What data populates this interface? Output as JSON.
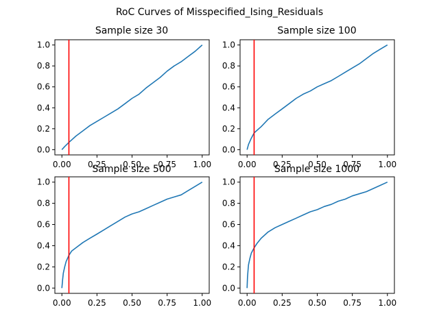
{
  "figure": {
    "title": "RoC Curves of Misspecified_Ising_Residuals"
  },
  "colors": {
    "curve": "#1f77b4",
    "threshold": "#ff0000"
  },
  "chart_data": [
    {
      "type": "line",
      "title": "Sample size 30",
      "xlabel": "",
      "ylabel": "",
      "xlim": [
        -0.05,
        1.05
      ],
      "ylim": [
        -0.05,
        1.05
      ],
      "xticks": [
        "0.00",
        "0.25",
        "0.50",
        "0.75",
        "1.00"
      ],
      "yticks": [
        "0.0",
        "0.2",
        "0.4",
        "0.6",
        "0.8",
        "1.0"
      ],
      "vline": 0.05,
      "grid": false,
      "x": [
        0,
        0.02,
        0.05,
        0.1,
        0.15,
        0.2,
        0.25,
        0.3,
        0.35,
        0.4,
        0.45,
        0.5,
        0.55,
        0.6,
        0.65,
        0.7,
        0.75,
        0.8,
        0.85,
        0.9,
        0.95,
        1.0
      ],
      "y": [
        0,
        0.03,
        0.07,
        0.13,
        0.18,
        0.23,
        0.27,
        0.31,
        0.35,
        0.39,
        0.44,
        0.49,
        0.53,
        0.59,
        0.64,
        0.69,
        0.75,
        0.8,
        0.84,
        0.89,
        0.94,
        1.0
      ]
    },
    {
      "type": "line",
      "title": "Sample size 100",
      "xlabel": "",
      "ylabel": "",
      "xlim": [
        -0.05,
        1.05
      ],
      "ylim": [
        -0.05,
        1.05
      ],
      "xticks": [
        "0.00",
        "0.25",
        "0.50",
        "0.75",
        "1.00"
      ],
      "yticks": [
        "0.0",
        "0.2",
        "0.4",
        "0.6",
        "0.8",
        "1.0"
      ],
      "vline": 0.05,
      "grid": false,
      "x": [
        0,
        0.01,
        0.03,
        0.05,
        0.1,
        0.15,
        0.2,
        0.25,
        0.3,
        0.35,
        0.4,
        0.45,
        0.5,
        0.55,
        0.6,
        0.65,
        0.7,
        0.75,
        0.8,
        0.85,
        0.9,
        0.95,
        1.0
      ],
      "y": [
        0,
        0.05,
        0.11,
        0.16,
        0.22,
        0.29,
        0.34,
        0.39,
        0.44,
        0.49,
        0.53,
        0.56,
        0.6,
        0.63,
        0.66,
        0.7,
        0.74,
        0.78,
        0.82,
        0.87,
        0.92,
        0.96,
        1.0
      ]
    },
    {
      "type": "line",
      "title": "Sample size 500",
      "xlabel": "",
      "ylabel": "",
      "xlim": [
        -0.05,
        1.05
      ],
      "ylim": [
        -0.05,
        1.05
      ],
      "xticks": [
        "0.00",
        "0.25",
        "0.50",
        "0.75",
        "1.00"
      ],
      "yticks": [
        "0.0",
        "0.2",
        "0.4",
        "0.6",
        "0.8",
        "1.0"
      ],
      "vline": 0.05,
      "grid": false,
      "x": [
        0,
        0.005,
        0.01,
        0.02,
        0.03,
        0.05,
        0.07,
        0.1,
        0.15,
        0.2,
        0.25,
        0.3,
        0.35,
        0.4,
        0.45,
        0.5,
        0.55,
        0.6,
        0.65,
        0.7,
        0.75,
        0.8,
        0.85,
        0.9,
        0.95,
        1.0
      ],
      "y": [
        0,
        0.08,
        0.14,
        0.2,
        0.25,
        0.31,
        0.35,
        0.38,
        0.43,
        0.47,
        0.51,
        0.55,
        0.59,
        0.63,
        0.67,
        0.7,
        0.72,
        0.75,
        0.78,
        0.81,
        0.84,
        0.86,
        0.88,
        0.92,
        0.96,
        1.0
      ]
    },
    {
      "type": "line",
      "title": "Sample size 1000",
      "xlabel": "",
      "ylabel": "",
      "xlim": [
        -0.05,
        1.05
      ],
      "ylim": [
        -0.05,
        1.05
      ],
      "xticks": [
        "0.00",
        "0.25",
        "0.50",
        "0.75",
        "1.00"
      ],
      "yticks": [
        "0.0",
        "0.2",
        "0.4",
        "0.6",
        "0.8",
        "1.0"
      ],
      "vline": 0.05,
      "grid": false,
      "x": [
        0,
        0.003,
        0.006,
        0.01,
        0.02,
        0.03,
        0.05,
        0.07,
        0.1,
        0.15,
        0.2,
        0.25,
        0.3,
        0.35,
        0.4,
        0.45,
        0.5,
        0.55,
        0.6,
        0.65,
        0.7,
        0.75,
        0.8,
        0.85,
        0.9,
        0.95,
        1.0
      ],
      "y": [
        0,
        0.1,
        0.16,
        0.22,
        0.28,
        0.33,
        0.38,
        0.42,
        0.47,
        0.53,
        0.57,
        0.6,
        0.63,
        0.66,
        0.69,
        0.72,
        0.74,
        0.77,
        0.79,
        0.82,
        0.84,
        0.87,
        0.89,
        0.91,
        0.94,
        0.97,
        1.0
      ]
    }
  ]
}
